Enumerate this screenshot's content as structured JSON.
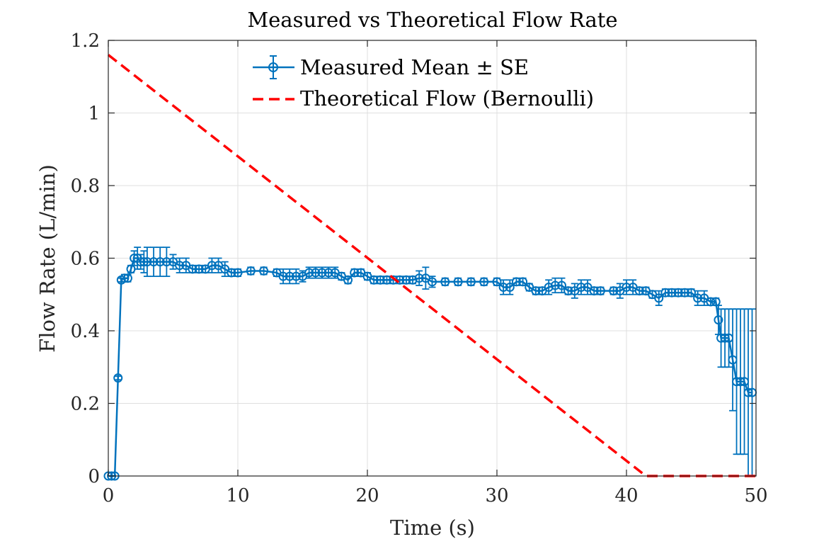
{
  "chart_data": {
    "type": "line",
    "title": "Measured vs Theoretical Flow Rate",
    "xlabel": "Time (s)",
    "ylabel": "Flow Rate (L/min)",
    "xlim": [
      0,
      50
    ],
    "ylim": [
      0,
      1.2
    ],
    "xticks": [
      0,
      10,
      20,
      30,
      40,
      50
    ],
    "yticks": [
      0,
      0.2,
      0.4,
      0.6,
      0.8,
      1,
      1.2
    ],
    "xtick_labels": [
      "0",
      "10",
      "20",
      "30",
      "40",
      "50"
    ],
    "ytick_labels": [
      "0",
      "0.2",
      "0.4",
      "0.6",
      "0.8",
      "1",
      "1.2"
    ],
    "grid": true,
    "legend_position": "top-center",
    "series": [
      {
        "name": "Measured Mean ± SE",
        "style": "line-circle-errorbar",
        "color": "#0072BD",
        "x": [
          0,
          0.25,
          0.5,
          0.75,
          1.0,
          1.25,
          1.5,
          1.75,
          2.0,
          2.25,
          2.5,
          2.75,
          3.0,
          3.5,
          4.0,
          4.5,
          5.0,
          5.5,
          6.0,
          6.5,
          7.0,
          7.5,
          8.0,
          8.5,
          9.0,
          9.5,
          10.0,
          11.0,
          12.0,
          13.0,
          13.5,
          14.0,
          14.5,
          15.0,
          15.5,
          16.0,
          16.5,
          17.0,
          17.5,
          18.0,
          18.5,
          19.0,
          19.5,
          20.0,
          20.5,
          21.0,
          21.5,
          22.0,
          22.5,
          23.0,
          23.5,
          24.0,
          24.5,
          25.0,
          26.0,
          27.0,
          28.0,
          29.0,
          30.0,
          30.5,
          31.0,
          31.5,
          32.0,
          32.5,
          33.0,
          33.5,
          34.0,
          34.5,
          35.0,
          35.5,
          36.0,
          36.5,
          37.0,
          37.5,
          38.0,
          39.0,
          39.5,
          40.0,
          40.5,
          41.0,
          41.5,
          42.0,
          42.5,
          43.0,
          43.5,
          44.0,
          44.5,
          45.0,
          45.5,
          46.0,
          46.5,
          46.9,
          47.1,
          47.3,
          47.6,
          47.9,
          48.2,
          48.5,
          48.8,
          49.1,
          49.4,
          49.7
        ],
        "y": [
          0,
          0,
          0,
          0.27,
          0.54,
          0.545,
          0.545,
          0.57,
          0.6,
          0.6,
          0.59,
          0.59,
          0.59,
          0.59,
          0.59,
          0.59,
          0.59,
          0.58,
          0.58,
          0.57,
          0.57,
          0.57,
          0.58,
          0.58,
          0.57,
          0.56,
          0.56,
          0.565,
          0.565,
          0.56,
          0.55,
          0.55,
          0.55,
          0.55,
          0.56,
          0.56,
          0.56,
          0.56,
          0.56,
          0.55,
          0.54,
          0.56,
          0.56,
          0.55,
          0.54,
          0.54,
          0.54,
          0.54,
          0.54,
          0.54,
          0.54,
          0.545,
          0.545,
          0.535,
          0.535,
          0.535,
          0.535,
          0.535,
          0.535,
          0.52,
          0.52,
          0.535,
          0.535,
          0.52,
          0.51,
          0.51,
          0.52,
          0.525,
          0.525,
          0.51,
          0.51,
          0.52,
          0.52,
          0.51,
          0.51,
          0.51,
          0.51,
          0.52,
          0.52,
          0.51,
          0.51,
          0.5,
          0.49,
          0.505,
          0.505,
          0.505,
          0.505,
          0.505,
          0.49,
          0.49,
          0.48,
          0.48,
          0.43,
          0.38,
          0.38,
          0.38,
          0.32,
          0.26,
          0.26,
          0.26,
          0.23,
          0.23
        ],
        "se": [
          0,
          0,
          0,
          0.005,
          0.005,
          0.01,
          0.01,
          0.01,
          0.02,
          0.03,
          0.02,
          0.03,
          0.04,
          0.04,
          0.04,
          0.04,
          0.02,
          0.02,
          0.02,
          0.01,
          0.01,
          0.01,
          0.02,
          0.02,
          0.02,
          0.01,
          0.01,
          0.01,
          0.01,
          0.01,
          0.02,
          0.02,
          0.02,
          0.015,
          0.015,
          0.015,
          0.015,
          0.015,
          0.015,
          0.01,
          0.01,
          0.01,
          0.01,
          0.01,
          0.01,
          0.01,
          0.01,
          0.01,
          0.01,
          0.01,
          0.01,
          0.02,
          0.03,
          0.015,
          0.01,
          0.01,
          0.01,
          0.01,
          0.01,
          0.02,
          0.02,
          0.01,
          0.01,
          0.01,
          0.01,
          0.01,
          0.02,
          0.02,
          0.02,
          0.01,
          0.02,
          0.02,
          0.02,
          0.01,
          0.01,
          0.01,
          0.02,
          0.02,
          0.02,
          0.01,
          0.01,
          0.01,
          0.02,
          0.01,
          0.01,
          0.01,
          0.01,
          0.01,
          0.02,
          0.02,
          0.01,
          0.01,
          0.04,
          0.08,
          0.08,
          0.08,
          0.14,
          0.2,
          0.2,
          0.2,
          0.23,
          0.23
        ]
      },
      {
        "name": "Theoretical Flow (Bernoulli)",
        "style": "dashed",
        "color": "#FF0000",
        "x": [
          0,
          41.5,
          50
        ],
        "y": [
          1.16,
          0,
          0
        ]
      }
    ]
  }
}
